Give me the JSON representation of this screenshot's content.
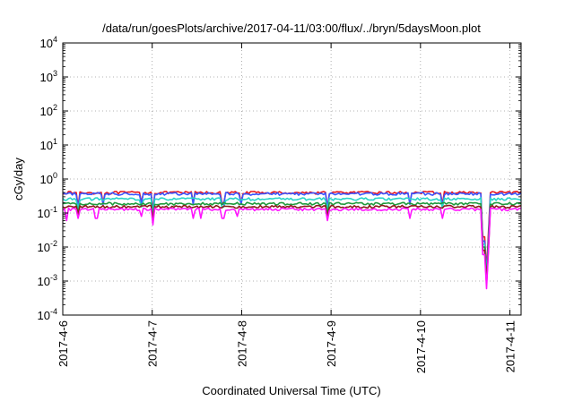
{
  "chart_data": {
    "type": "line",
    "title": "/data/run/goesPlots/archive/2017-04-11/03:00/flux/../bryn/5daysMoon.plot",
    "xlabel": "Coordinated Universal Time (UTC)",
    "ylabel": "cGy/day",
    "yscale": "log",
    "ylim": [
      0.0001,
      10000
    ],
    "xlim": [
      "2017-04-06 00:00",
      "2017-04-11 03:00"
    ],
    "grid": true,
    "y_ticks": [
      {
        "value": 0.0001,
        "base": "10",
        "exp": "-4"
      },
      {
        "value": 0.001,
        "base": "10",
        "exp": "-3"
      },
      {
        "value": 0.01,
        "base": "10",
        "exp": "-2"
      },
      {
        "value": 0.1,
        "base": "10",
        "exp": "-1"
      },
      {
        "value": 1,
        "base": "10",
        "exp": "0"
      },
      {
        "value": 10,
        "base": "10",
        "exp": "1"
      },
      {
        "value": 100,
        "base": "10",
        "exp": "2"
      },
      {
        "value": 1000,
        "base": "10",
        "exp": "3"
      },
      {
        "value": 10000,
        "base": "10",
        "exp": "4"
      }
    ],
    "x_ticks": [
      {
        "value": "2017-04-06 00:00",
        "label": "2017-4-6"
      },
      {
        "value": "2017-04-07 00:00",
        "label": "2017-4-7"
      },
      {
        "value": "2017-04-08 00:00",
        "label": "2017-4-8"
      },
      {
        "value": "2017-04-09 00:00",
        "label": "2017-4-9"
      },
      {
        "value": "2017-04-10 00:00",
        "label": "2017-4-10"
      },
      {
        "value": "2017-04-11 00:00",
        "label": "2017-4-11"
      }
    ],
    "series": [
      {
        "color": "#e8161e",
        "base": 0.4,
        "dips": [
          {
            "t": "2017-04-06 04:00",
            "y": 0.16
          },
          {
            "t": "2017-04-06 11:00",
            "y": 0.2
          },
          {
            "t": "2017-04-06 21:00",
            "y": 0.21
          },
          {
            "t": "2017-04-07 00:00",
            "y": 0.12
          },
          {
            "t": "2017-04-07 11:00",
            "y": 0.2
          },
          {
            "t": "2017-04-07 19:00",
            "y": 0.2
          },
          {
            "t": "2017-04-08 00:00",
            "y": 0.2
          },
          {
            "t": "2017-04-08 23:00",
            "y": 0.15
          },
          {
            "t": "2017-04-09 21:00",
            "y": 0.2
          },
          {
            "t": "2017-04-10 06:00",
            "y": 0.18
          },
          {
            "t": "2017-04-10 17:00",
            "y": 0.02
          },
          {
            "t": "2017-04-10 17:30",
            "y": 0.002
          },
          {
            "t": "2017-04-10 18:00",
            "y": 0.03
          }
        ]
      },
      {
        "color": "#3a55ff",
        "base": 0.37,
        "dips": [
          {
            "t": "2017-04-06 04:00",
            "y": 0.14
          },
          {
            "t": "2017-04-06 11:00",
            "y": 0.18
          },
          {
            "t": "2017-04-06 21:00",
            "y": 0.19
          },
          {
            "t": "2017-04-07 00:00",
            "y": 0.1
          },
          {
            "t": "2017-04-07 11:00",
            "y": 0.18
          },
          {
            "t": "2017-04-07 19:00",
            "y": 0.18
          },
          {
            "t": "2017-04-08 00:00",
            "y": 0.18
          },
          {
            "t": "2017-04-08 23:00",
            "y": 0.13
          },
          {
            "t": "2017-04-09 21:00",
            "y": 0.18
          },
          {
            "t": "2017-04-10 06:00",
            "y": 0.16
          },
          {
            "t": "2017-04-10 17:00",
            "y": 0.015
          },
          {
            "t": "2017-04-10 17:30",
            "y": 0.0015
          },
          {
            "t": "2017-04-10 18:00",
            "y": 0.02
          }
        ]
      },
      {
        "color": "#28d4c8",
        "base": 0.26,
        "dips": [
          {
            "t": "2017-04-06 04:00",
            "y": 0.13
          },
          {
            "t": "2017-04-06 21:00",
            "y": 0.15
          },
          {
            "t": "2017-04-07 00:00",
            "y": 0.1
          },
          {
            "t": "2017-04-07 19:00",
            "y": 0.15
          },
          {
            "t": "2017-04-08 23:00",
            "y": 0.12
          },
          {
            "t": "2017-04-10 06:00",
            "y": 0.14
          },
          {
            "t": "2017-04-10 17:00",
            "y": 0.012
          },
          {
            "t": "2017-04-10 17:30",
            "y": 0.0012
          },
          {
            "t": "2017-04-10 18:00",
            "y": 0.015
          }
        ]
      },
      {
        "color": "#1e9a3c",
        "base": 0.19,
        "dips": [
          {
            "t": "2017-04-06 04:00",
            "y": 0.1
          },
          {
            "t": "2017-04-07 00:00",
            "y": 0.08
          },
          {
            "t": "2017-04-08 23:00",
            "y": 0.09
          },
          {
            "t": "2017-04-10 17:00",
            "y": 0.01
          },
          {
            "t": "2017-04-10 17:30",
            "y": 0.001
          },
          {
            "t": "2017-04-10 18:00",
            "y": 0.012
          }
        ]
      },
      {
        "color": "#8b1a1a",
        "base": 0.155,
        "dips": [
          {
            "t": "2017-04-06 04:00",
            "y": 0.09
          },
          {
            "t": "2017-04-07 00:00",
            "y": 0.07
          },
          {
            "t": "2017-04-08 23:00",
            "y": 0.08
          },
          {
            "t": "2017-04-10 17:00",
            "y": 0.008
          },
          {
            "t": "2017-04-10 17:30",
            "y": 0.0008
          },
          {
            "t": "2017-04-10 18:00",
            "y": 0.01
          }
        ]
      },
      {
        "color": "#ff14ff",
        "base": 0.13,
        "dips": [
          {
            "t": "2017-04-06 01:00",
            "y": 0.06
          },
          {
            "t": "2017-04-06 04:00",
            "y": 0.07
          },
          {
            "t": "2017-04-06 09:00",
            "y": 0.07
          },
          {
            "t": "2017-04-06 21:00",
            "y": 0.08
          },
          {
            "t": "2017-04-07 00:00",
            "y": 0.045
          },
          {
            "t": "2017-04-07 11:00",
            "y": 0.07
          },
          {
            "t": "2017-04-07 13:00",
            "y": 0.07
          },
          {
            "t": "2017-04-07 19:00",
            "y": 0.07
          },
          {
            "t": "2017-04-07 23:00",
            "y": 0.08
          },
          {
            "t": "2017-04-08 23:00",
            "y": 0.06
          },
          {
            "t": "2017-04-09 21:00",
            "y": 0.07
          },
          {
            "t": "2017-04-10 06:00",
            "y": 0.07
          },
          {
            "t": "2017-04-10 17:00",
            "y": 0.006
          },
          {
            "t": "2017-04-10 17:30",
            "y": 0.0006
          },
          {
            "t": "2017-04-10 18:00",
            "y": 0.008
          }
        ]
      }
    ]
  }
}
